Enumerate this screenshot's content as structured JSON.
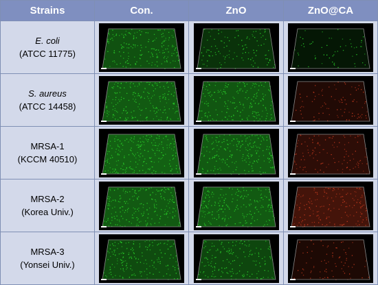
{
  "table": {
    "headers": [
      "Strains",
      "Con.",
      "ZnO",
      "ZnO@CA"
    ],
    "rows": [
      {
        "strain": "E. coli",
        "italic": true,
        "code": "(ATCC 11775)",
        "images": [
          {
            "stain": "green",
            "density": 0.75
          },
          {
            "stain": "green",
            "density": 0.45
          },
          {
            "stain": "green",
            "density": 0.22
          }
        ]
      },
      {
        "strain": "S. aureus",
        "italic": true,
        "code": "(ATCC 14458)",
        "images": [
          {
            "stain": "green",
            "density": 0.85
          },
          {
            "stain": "green",
            "density": 0.8
          },
          {
            "stain": "red",
            "density": 0.35
          }
        ]
      },
      {
        "strain": "MRSA-1",
        "italic": false,
        "code": "(KCCM 40510)",
        "images": [
          {
            "stain": "green",
            "density": 0.9
          },
          {
            "stain": "green",
            "density": 0.85
          },
          {
            "stain": "red",
            "density": 0.45
          }
        ]
      },
      {
        "strain": "MRSA-2",
        "italic": false,
        "code": "(Korea Univ.)",
        "images": [
          {
            "stain": "green",
            "density": 0.85
          },
          {
            "stain": "green",
            "density": 0.85
          },
          {
            "stain": "red",
            "density": 0.7
          }
        ]
      },
      {
        "strain": "MRSA-3",
        "italic": false,
        "code": "(Yonsei Univ.)",
        "images": [
          {
            "stain": "green",
            "density": 0.7
          },
          {
            "stain": "green",
            "density": 0.65
          },
          {
            "stain": "red",
            "density": 0.3
          }
        ]
      }
    ]
  },
  "colors": {
    "header_bg": "#7f8fc0",
    "cell_bg": "#d3d9ea",
    "grid_line": "#7f8fb4",
    "live_stain": "#2bd62b",
    "dead_stain": "#c23a1e"
  }
}
